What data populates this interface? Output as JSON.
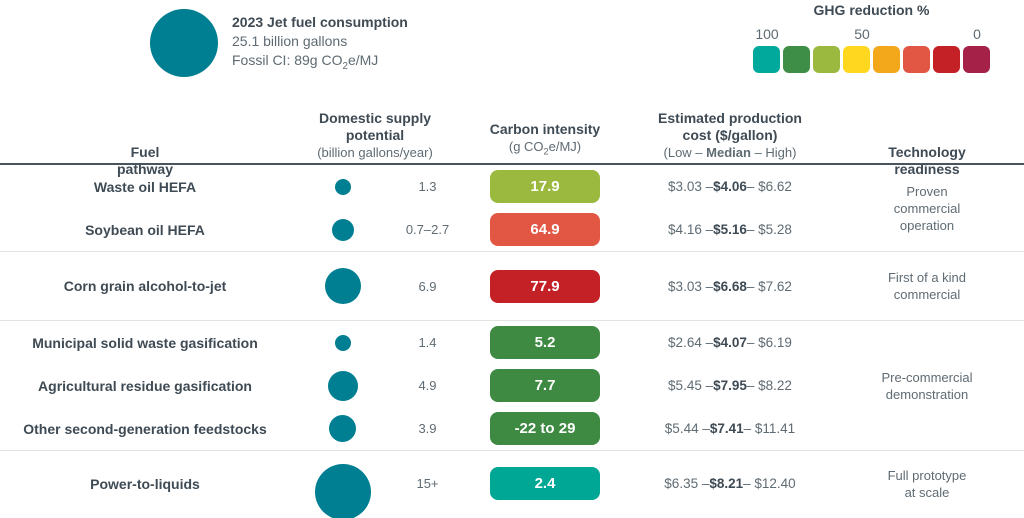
{
  "consumption_legend": {
    "title": "2023 Jet fuel consumption",
    "volume_line": "25.1 billion gallons",
    "ci_prefix": "Fossil CI: 89g CO",
    "ci_sub": "2",
    "ci_suffix": "e/MJ",
    "bubble_color": "#007E92"
  },
  "ghg_legend": {
    "title": "GHG reduction %",
    "ticks": [
      "100",
      "50",
      "0"
    ],
    "colors": [
      "#00A99C",
      "#3E8E47",
      "#9CB93F",
      "#FFD71E",
      "#F3A81C",
      "#E25744",
      "#C42127",
      "#A52148"
    ]
  },
  "table_headers": {
    "fuel": "Fuel\npathway",
    "supply_main": "Domestic supply\npotential",
    "supply_sub": "(billion gallons/year)",
    "ci_main": "Carbon intensity",
    "ci_sub_pre": "(g CO",
    "ci_sub_sub": "2",
    "ci_sub_post": "e/MJ)",
    "cost_main": "Estimated production\ncost ($/gallon)",
    "cost_sub_pre": "(Low – ",
    "cost_sub_bold": "Median",
    "cost_sub_post": " – High)",
    "tech": "Technology\nreadiness"
  },
  "chart_data": {
    "type": "table",
    "title": "US sustainable aviation fuel pathways vs 2023 jet fuel consumption of 25.1 billion gallons (fossil CI 89 g CO2e/MJ)",
    "columns": [
      "Fuel pathway",
      "Domestic supply potential (billion gallons/year)",
      "Carbon intensity (g CO2e/MJ)",
      "Estimated production cost ($/gallon) (Low – Median – High)",
      "Technology readiness"
    ],
    "cost_separator": " – ",
    "bubble_color": "#007E92",
    "groups": [
      {
        "technology_readiness": "Proven\ncommercial\noperation",
        "rows": [
          {
            "fuel_pathway": "Waste oil HEFA",
            "supply_label": "1.3",
            "bubble_value": 1.3,
            "carbon_intensity_label": "17.9",
            "carbon_intensity_color": "#9CB93F",
            "cost_low": "$3.03",
            "cost_median": "$4.06",
            "cost_high": "$6.62"
          },
          {
            "fuel_pathway": "Soybean oil HEFA",
            "supply_label": "0.7–2.7",
            "bubble_value": 2.7,
            "carbon_intensity_label": "64.9",
            "carbon_intensity_color": "#E25744",
            "cost_low": "$4.16",
            "cost_median": "$5.16",
            "cost_high": "$5.28"
          }
        ]
      },
      {
        "technology_readiness": "First of a kind\ncommercial",
        "rows": [
          {
            "fuel_pathway": "Corn grain alcohol-to-jet",
            "supply_label": "6.9",
            "bubble_value": 6.9,
            "carbon_intensity_label": "77.9",
            "carbon_intensity_color": "#C42127",
            "cost_low": "$3.03",
            "cost_median": "$6.68",
            "cost_high": "$7.62"
          }
        ]
      },
      {
        "technology_readiness": "Pre-commercial\ndemonstration",
        "rows": [
          {
            "fuel_pathway": "Municipal solid waste gasification",
            "supply_label": "1.4",
            "bubble_value": 1.4,
            "carbon_intensity_label": "5.2",
            "carbon_intensity_color": "#3E8A42",
            "cost_low": "$2.64",
            "cost_median": "$4.07",
            "cost_high": "$6.19"
          },
          {
            "fuel_pathway": "Agricultural residue gasification",
            "supply_label": "4.9",
            "bubble_value": 4.9,
            "carbon_intensity_label": "7.7",
            "carbon_intensity_color": "#3E8A42",
            "cost_low": "$5.45",
            "cost_median": "$7.95",
            "cost_high": "$8.22"
          },
          {
            "fuel_pathway": "Other second-generation feedstocks",
            "supply_label": "3.9",
            "bubble_value": 3.9,
            "carbon_intensity_label": "-22 to 29",
            "carbon_intensity_color": "#3E8A42",
            "cost_low": "$5.44",
            "cost_median": "$7.41",
            "cost_high": "$11.41"
          }
        ]
      },
      {
        "technology_readiness": "Full prototype\nat scale",
        "rows": [
          {
            "fuel_pathway": "Power-to-liquids",
            "supply_label": "15+",
            "bubble_value": 17,
            "carbon_intensity_label": "2.4",
            "carbon_intensity_color": "#00A794",
            "cost_low": "$6.35",
            "cost_median": "$8.21",
            "cost_high": "$12.40"
          }
        ]
      }
    ]
  }
}
